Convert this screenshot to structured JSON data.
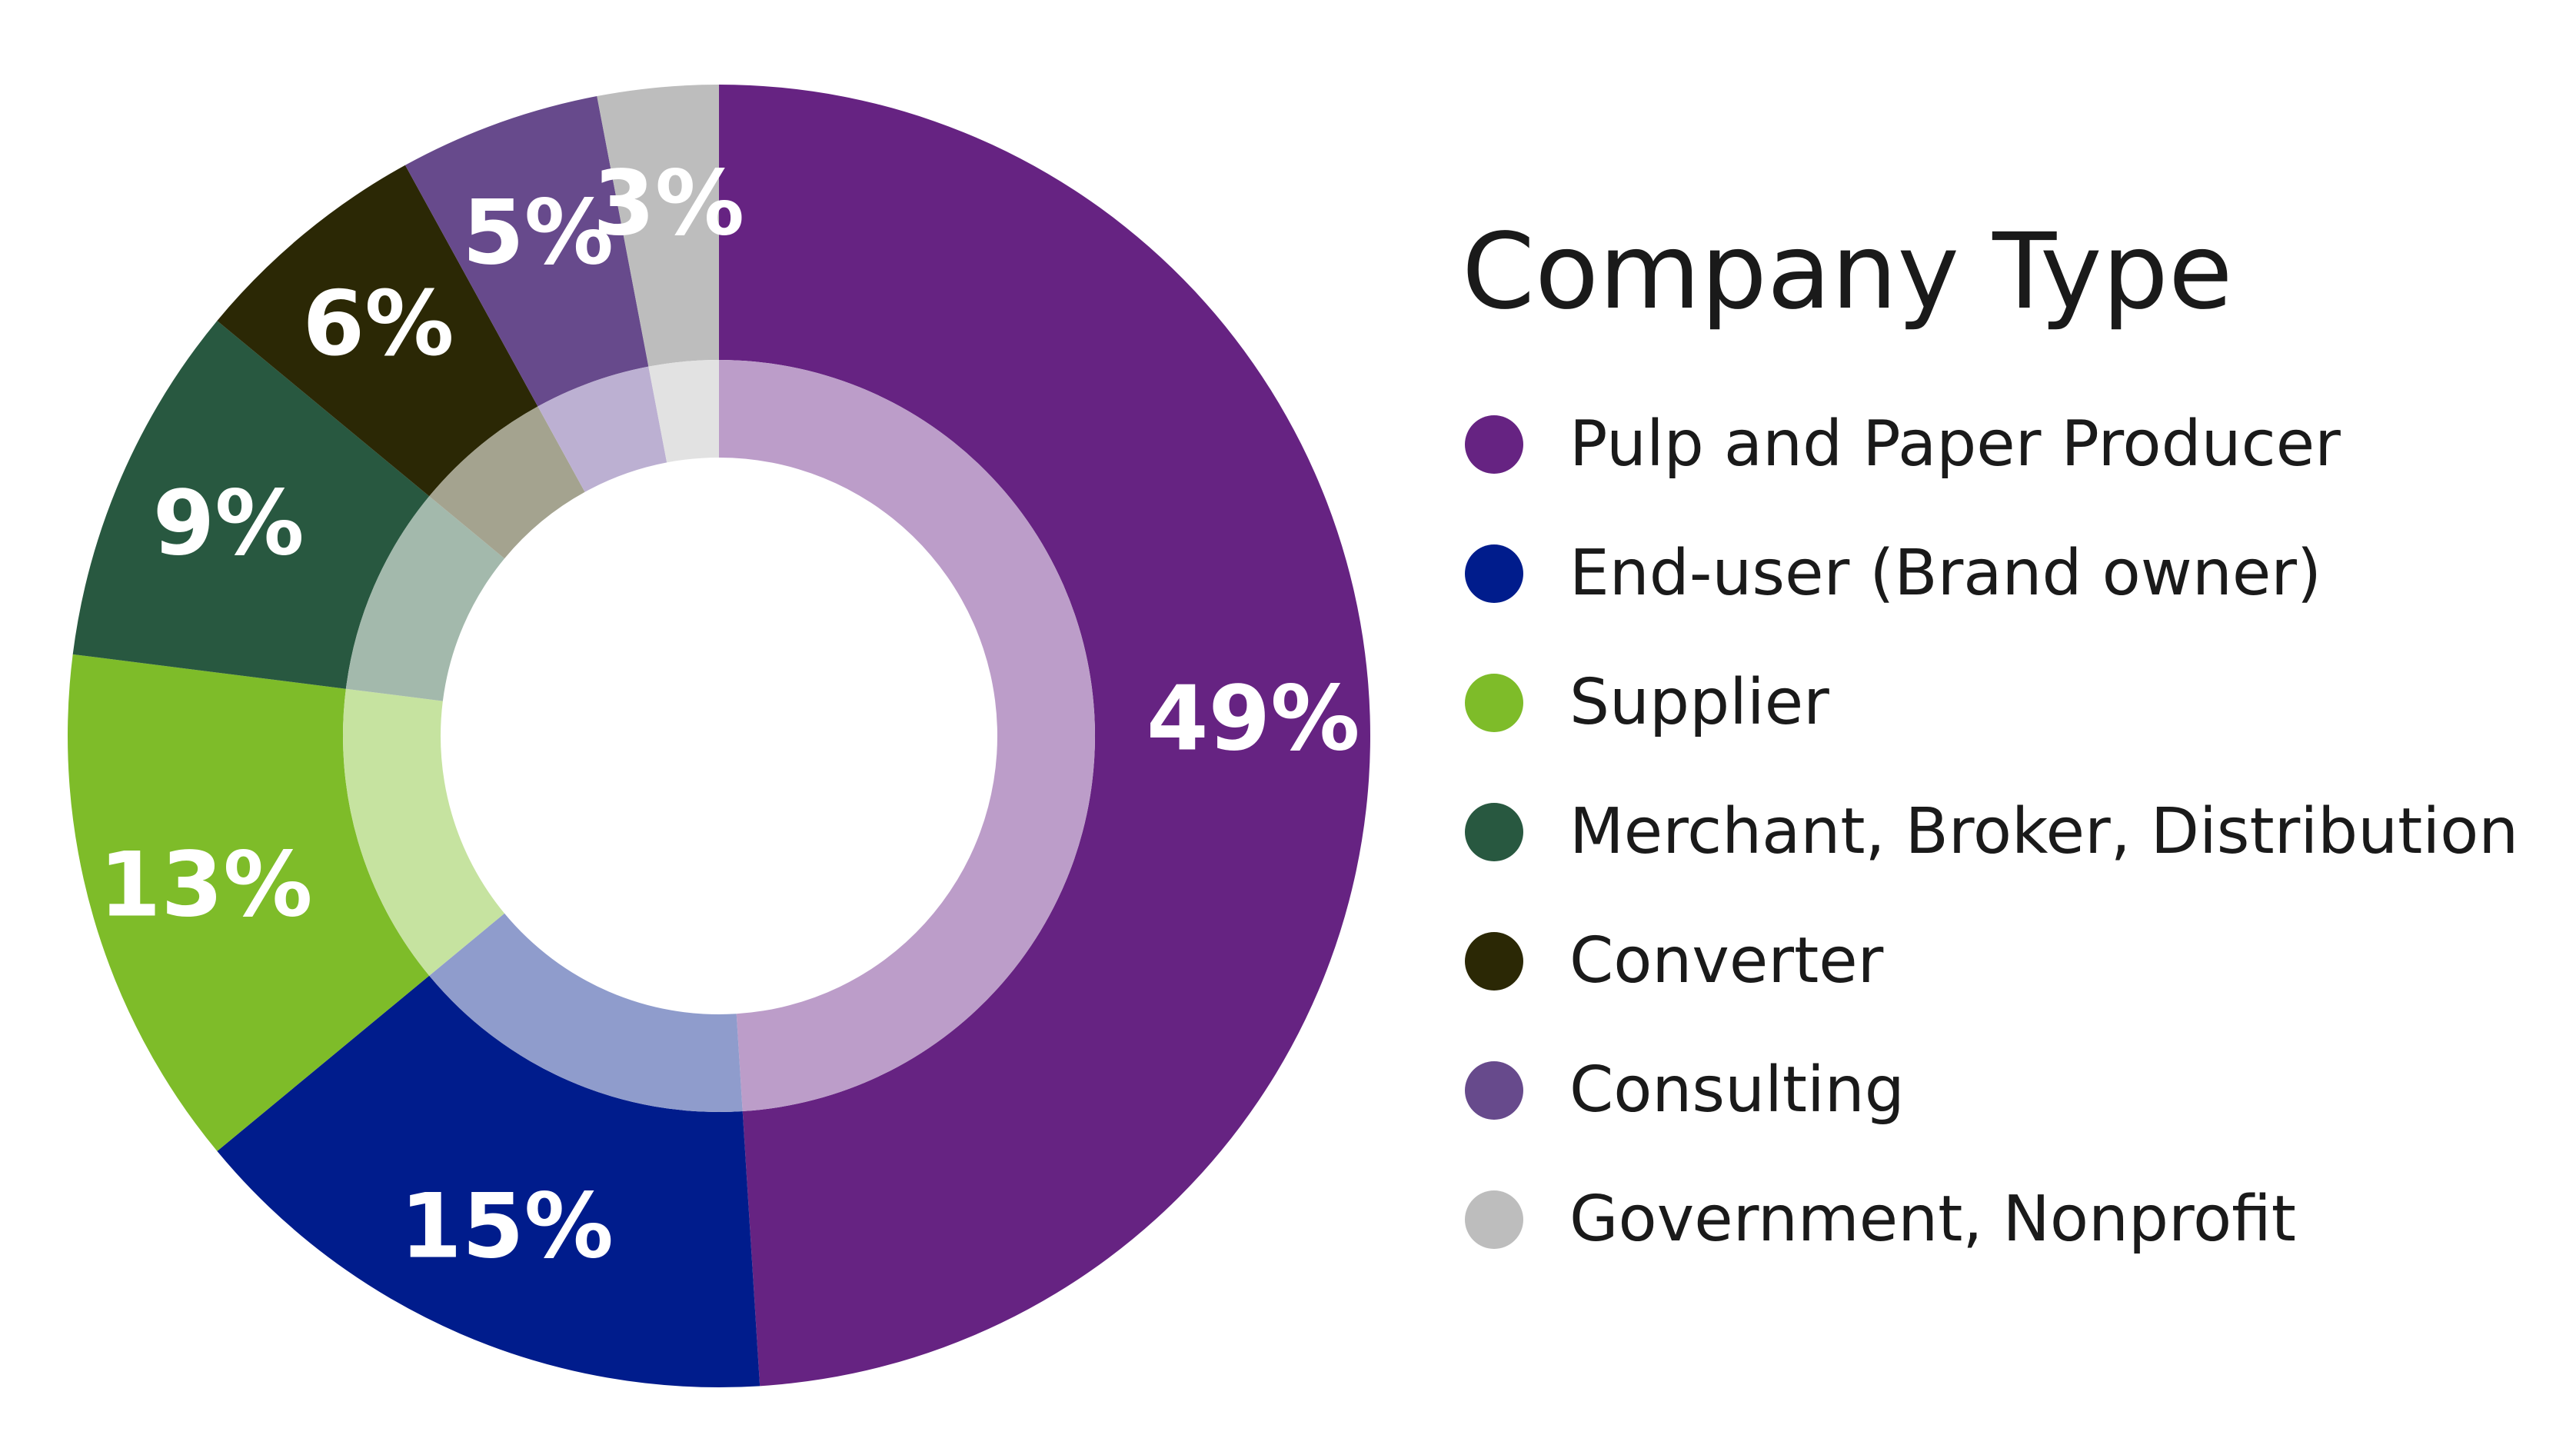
{
  "chart_data": {
    "type": "pie",
    "variant": "donut",
    "title": "Company Type",
    "legend_position": "right",
    "slices": [
      {
        "name": "Pulp and Paper Producer",
        "value": 49,
        "label": "49%",
        "color": "#662382",
        "inner_color": "#bc9dc9"
      },
      {
        "name": "End-user (Brand owner)",
        "value": 15,
        "label": "15%",
        "color": "#001c8c",
        "inner_color": "#8f9ccc"
      },
      {
        "name": "Supplier",
        "value": 13,
        "label": "13%",
        "color": "#7ebc29",
        "inner_color": "#c6e3a0"
      },
      {
        "name": "Merchant, Broker, Distribution",
        "value": 9,
        "label": "9%",
        "color": "#285840",
        "inner_color": "#a3b9ac"
      },
      {
        "name": "Converter",
        "value": 6,
        "label": "6%",
        "color": "#2b2805",
        "inner_color": "#a4a38f"
      },
      {
        "name": "Consulting",
        "value": 5,
        "label": "5%",
        "color": "#674a8c",
        "inner_color": "#bcb0d2"
      },
      {
        "name": "Government, Nonprofit",
        "value": 3,
        "label": "3%",
        "color": "#bdbdbd",
        "inner_color": "#e2e2e2"
      }
    ]
  }
}
